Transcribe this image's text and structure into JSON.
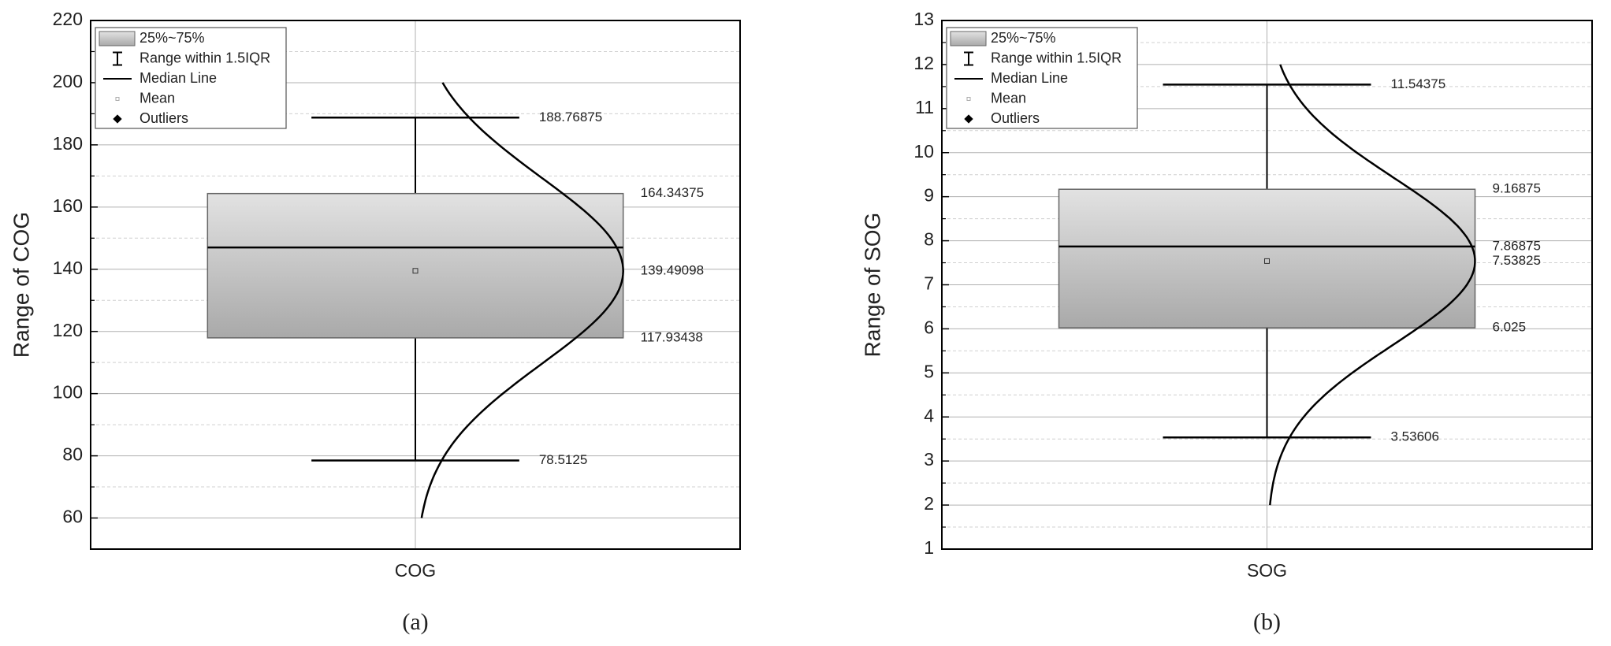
{
  "chart_data": [
    {
      "type": "box",
      "caption": "(a)",
      "y_label": "Range of COG",
      "categories": [
        "COG"
      ],
      "whisker_low": [
        78.5125
      ],
      "q1": [
        117.93438
      ],
      "median": [
        147
      ],
      "q3": [
        164.34375
      ],
      "whisker_high": [
        188.76875
      ],
      "mean": [
        139.49098
      ],
      "labeled_stats": [
        "whisker_high",
        "q3",
        "mean",
        "q1",
        "whisker_low"
      ],
      "curve": {
        "from": 60,
        "to": 200,
        "sd": 30
      },
      "ylim": [
        50,
        220
      ],
      "yticks": [
        60,
        80,
        100,
        120,
        140,
        160,
        180,
        200,
        220
      ],
      "yminor": [
        70,
        90,
        110,
        130,
        150,
        170,
        190,
        210
      ],
      "grid": true,
      "box_color": "#c8c8c8",
      "legend": [
        "25%~75%",
        "Range within 1.5IQR",
        "Median Line",
        "Mean",
        "Outliers"
      ],
      "legend_position": "top-left"
    },
    {
      "type": "box",
      "caption": "(b)",
      "y_label": "Range of SOG",
      "categories": [
        "SOG"
      ],
      "whisker_low": [
        3.53606
      ],
      "q1": [
        6.025
      ],
      "median": [
        7.86875
      ],
      "q3": [
        9.16875
      ],
      "whisker_high": [
        11.54375
      ],
      "mean": [
        7.53825
      ],
      "labeled_stats": [
        "whisker_high",
        "q3",
        "median",
        "mean",
        "q1",
        "whisker_low"
      ],
      "curve": {
        "from": 2,
        "to": 12,
        "sd": 1.9
      },
      "ylim": [
        1,
        13
      ],
      "yticks": [
        1,
        2,
        3,
        4,
        5,
        6,
        7,
        8,
        9,
        10,
        11,
        12,
        13
      ],
      "yminor": [
        1.5,
        2.5,
        3.5,
        4.5,
        5.5,
        6.5,
        7.5,
        8.5,
        9.5,
        10.5,
        11.5,
        12.5
      ],
      "grid": true,
      "box_color": "#c8c8c8",
      "legend": [
        "25%~75%",
        "Range within 1.5IQR",
        "Median Line",
        "Mean",
        "Outliers"
      ],
      "legend_position": "top-left"
    }
  ]
}
